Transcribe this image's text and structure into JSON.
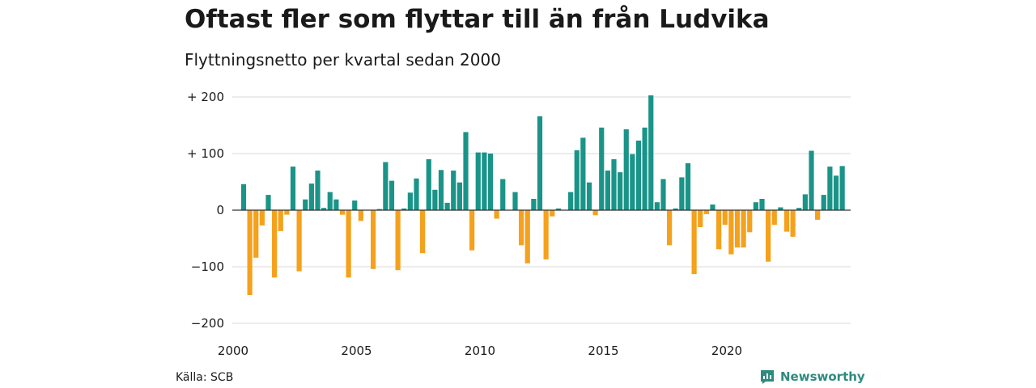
{
  "chart_data": {
    "type": "bar",
    "title": "Oftast fler som flyttar till än från Ludvika",
    "subtitle": "Flyttningsnetto per kvartal sedan 2000",
    "source": "Källa: SCB",
    "brand": "Newsworthy",
    "ylim": [
      -200,
      200
    ],
    "yticks": [
      {
        "value": 200,
        "label": "+ 200"
      },
      {
        "value": 100,
        "label": "+ 100"
      },
      {
        "value": 0,
        "label": "0"
      },
      {
        "value": -100,
        "label": "−100"
      },
      {
        "value": -200,
        "label": "−200"
      }
    ],
    "xticks": [
      {
        "value": 2000,
        "label": "2000"
      },
      {
        "value": 2005,
        "label": "2005"
      },
      {
        "value": 2010,
        "label": "2010"
      },
      {
        "value": 2015,
        "label": "2015"
      },
      {
        "value": 2020,
        "label": "2020"
      }
    ],
    "x_start_year": 2000,
    "grid": true,
    "colors": {
      "positive": "#1a9488",
      "negative": "#f5a11c",
      "grid": "#d9d9d9",
      "zero": "#333333",
      "brand": "#2f8a80"
    },
    "values": [
      46,
      -150,
      -84,
      -27,
      27,
      -119,
      -37,
      -8,
      77,
      -108,
      19,
      47,
      70,
      4,
      32,
      19,
      -8,
      -119,
      17,
      -19,
      0,
      -104,
      2,
      85,
      52,
      -106,
      3,
      31,
      56,
      -76,
      90,
      36,
      71,
      13,
      70,
      49,
      138,
      -71,
      102,
      102,
      100,
      -15,
      55,
      0,
      32,
      -62,
      -94,
      20,
      166,
      -87,
      -11,
      3,
      0,
      32,
      106,
      128,
      49,
      -9,
      146,
      70,
      90,
      67,
      143,
      99,
      123,
      146,
      203,
      14,
      55,
      -62,
      3,
      58,
      83,
      -113,
      -30,
      -7,
      10,
      -69,
      -26,
      -78,
      -66,
      -66,
      -39,
      14,
      20,
      -91,
      -26,
      5,
      -38,
      -47,
      4,
      28,
      105,
      -17,
      27,
      77,
      61,
      78
    ]
  }
}
